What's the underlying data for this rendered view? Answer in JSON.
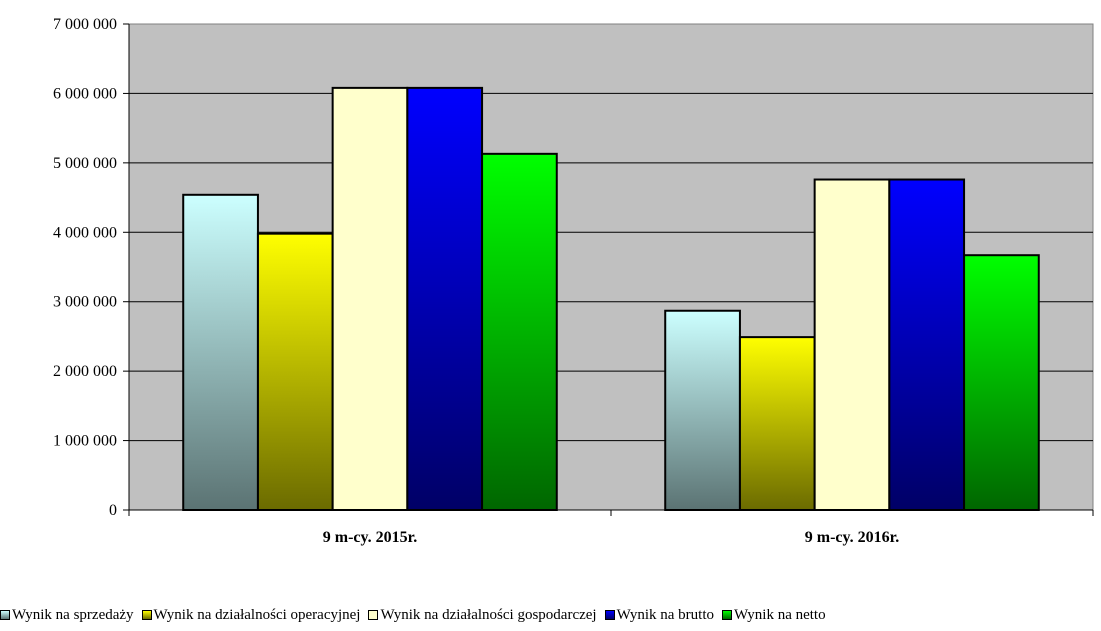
{
  "chart_data": {
    "type": "bar",
    "categories": [
      "9 m-cy. 2015r.",
      "9 m-cy. 2016r."
    ],
    "series": [
      {
        "name": "Wynik na sprzedaży",
        "values": [
          4540000,
          2870000
        ],
        "color_top": "#ccffff",
        "color_bottom": "#5b7373"
      },
      {
        "name": "Wynik na działalności operacyjnej",
        "values": [
          3980000,
          2490000
        ],
        "color_top": "#ffff00",
        "color_bottom": "#6b6b00"
      },
      {
        "name": "Wynik na działalności gospodarczej",
        "values": [
          6080000,
          4760000
        ],
        "color_top": "#ffffcc",
        "color_bottom": "#ffffcc"
      },
      {
        "name": "Wynik na brutto",
        "values": [
          6080000,
          4760000
        ],
        "color_top": "#0000ff",
        "color_bottom": "#000066"
      },
      {
        "name": "Wynik na netto",
        "values": [
          5130000,
          3670000
        ],
        "color_top": "#00ff00",
        "color_bottom": "#006600"
      }
    ],
    "yticks": [
      "0",
      "1 000 000",
      "2 000 000",
      "3 000 000",
      "4 000 000",
      "5 000 000",
      "6 000 000",
      "7 000 000"
    ],
    "ylim": [
      0,
      7000000
    ],
    "grid": true,
    "legend": "bottom",
    "plot_background": "#c0c0c0"
  }
}
